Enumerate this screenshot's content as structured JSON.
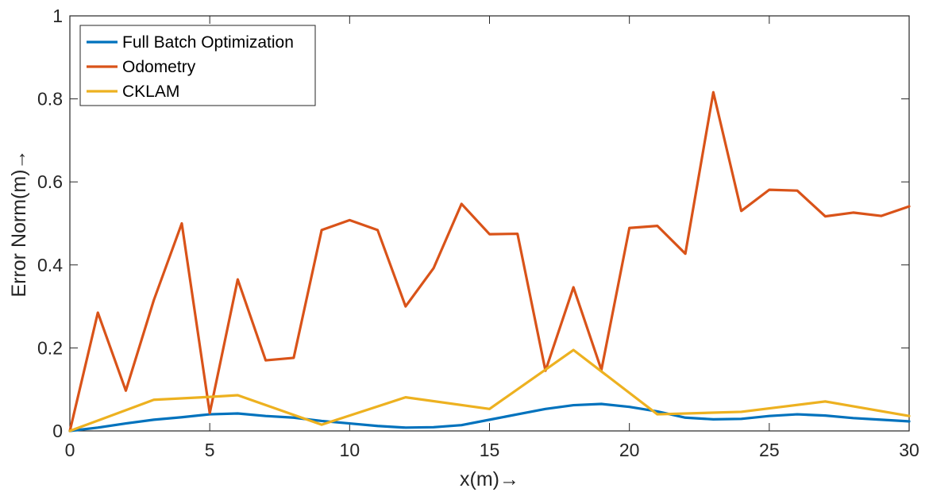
{
  "chart_data": {
    "type": "line",
    "title": "",
    "xlabel": "x(m)→",
    "ylabel": "Error Norm(m)→",
    "xlim": [
      0,
      30
    ],
    "ylim": [
      0,
      1
    ],
    "x_ticks": [
      "0",
      "5",
      "10",
      "15",
      "20",
      "25",
      "30"
    ],
    "y_ticks": [
      "0",
      "0.2",
      "0.4",
      "0.6",
      "0.8",
      "1"
    ],
    "grid": false,
    "legend_position": "top-left",
    "x": [
      0,
      1,
      2,
      3,
      4,
      5,
      6,
      7,
      8,
      9,
      10,
      11,
      12,
      13,
      14,
      15,
      16,
      17,
      18,
      19,
      20,
      21,
      22,
      23,
      24,
      25,
      26,
      27,
      28,
      29,
      30
    ],
    "series": [
      {
        "name": "Full Batch Optimization",
        "color": "#0072BD",
        "x": [
          0,
          1,
          2,
          3,
          4,
          5,
          6,
          7,
          8,
          9,
          10,
          11,
          12,
          13,
          14,
          15,
          16,
          17,
          18,
          19,
          20,
          21,
          22,
          23,
          24,
          25,
          26,
          27,
          28,
          29,
          30
        ],
        "values": [
          0.0,
          0.008,
          0.018,
          0.027,
          0.033,
          0.04,
          0.042,
          0.036,
          0.032,
          0.024,
          0.018,
          0.012,
          0.008,
          0.009,
          0.014,
          0.027,
          0.04,
          0.053,
          0.062,
          0.065,
          0.058,
          0.047,
          0.032,
          0.028,
          0.029,
          0.036,
          0.04,
          0.037,
          0.031,
          0.027,
          0.023
        ]
      },
      {
        "name": "Odometry",
        "color": "#D95319",
        "x": [
          0,
          1,
          2,
          3,
          4,
          5,
          6,
          7,
          8,
          9,
          10,
          11,
          12,
          13,
          14,
          15,
          16,
          17,
          18,
          19,
          20,
          21,
          22,
          23,
          24,
          25,
          26,
          27,
          28,
          29,
          30
        ],
        "values": [
          0.0,
          0.285,
          0.097,
          0.315,
          0.5,
          0.043,
          0.365,
          0.17,
          0.176,
          0.484,
          0.508,
          0.484,
          0.3,
          0.392,
          0.547,
          0.474,
          0.475,
          0.145,
          0.346,
          0.147,
          0.489,
          0.494,
          0.427,
          0.816,
          0.53,
          0.581,
          0.579,
          0.517,
          0.526,
          0.518,
          0.541
        ]
      },
      {
        "name": "CKLAM",
        "color": "#EDB120",
        "x": [
          0,
          3,
          5,
          6,
          9,
          12,
          15,
          18,
          21,
          24,
          27,
          30
        ],
        "values": [
          0.0,
          0.075,
          0.082,
          0.086,
          0.015,
          0.081,
          0.053,
          0.195,
          0.04,
          0.046,
          0.071,
          0.036
        ]
      }
    ]
  }
}
